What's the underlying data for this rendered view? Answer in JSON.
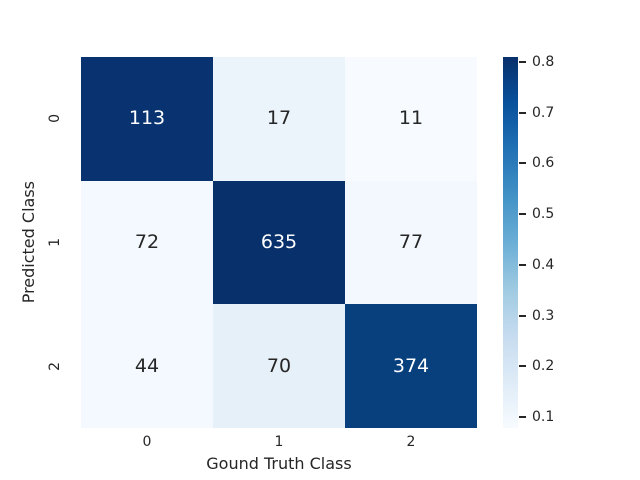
{
  "figure": {
    "background": "#ffffff",
    "text_color": "#262626"
  },
  "chart_data": {
    "type": "heatmap",
    "title": "",
    "xlabel": "Gound Truth Class",
    "ylabel": "Predicted Class",
    "x_ticklabels": [
      "0",
      "1",
      "2"
    ],
    "y_ticklabels": [
      "0",
      "1",
      "2"
    ],
    "values": [
      [
        113,
        17,
        11
      ],
      [
        72,
        635,
        77
      ],
      [
        44,
        70,
        374
      ]
    ],
    "normalized_values": [
      [
        0.8,
        0.12,
        0.08
      ],
      [
        0.09,
        0.81,
        0.1
      ],
      [
        0.09,
        0.14,
        0.77
      ]
    ],
    "cell_colors": [
      [
        "#083370",
        "#ebf3fb",
        "#f7fbff"
      ],
      [
        "#f3f9fe",
        "#08306b",
        "#f2f8fd"
      ],
      [
        "#f3f9fe",
        "#e5f0f9",
        "#08407e"
      ]
    ],
    "cell_text_colors": [
      [
        "#ffffff",
        "#262626",
        "#262626"
      ],
      [
        "#262626",
        "#ffffff",
        "#262626"
      ],
      [
        "#262626",
        "#262626",
        "#ffffff"
      ]
    ],
    "grid": false,
    "legend_position": "colorbar-right",
    "colorbar": {
      "gradient_top_to_bottom": [
        "#08306b",
        "#08519c",
        "#2171b5",
        "#4292c6",
        "#6baed6",
        "#9ecae1",
        "#c6dbef",
        "#deebf7",
        "#f7fbff"
      ],
      "ticks": [
        {
          "label": "0.8",
          "pos_pct": 1.4
        },
        {
          "label": "0.7",
          "pos_pct": 15.0
        },
        {
          "label": "0.6",
          "pos_pct": 28.7
        },
        {
          "label": "0.5",
          "pos_pct": 42.3
        },
        {
          "label": "0.4",
          "pos_pct": 56.0
        },
        {
          "label": "0.3",
          "pos_pct": 69.7
        },
        {
          "label": "0.2",
          "pos_pct": 83.3
        },
        {
          "label": "0.1",
          "pos_pct": 97.0
        }
      ]
    }
  }
}
